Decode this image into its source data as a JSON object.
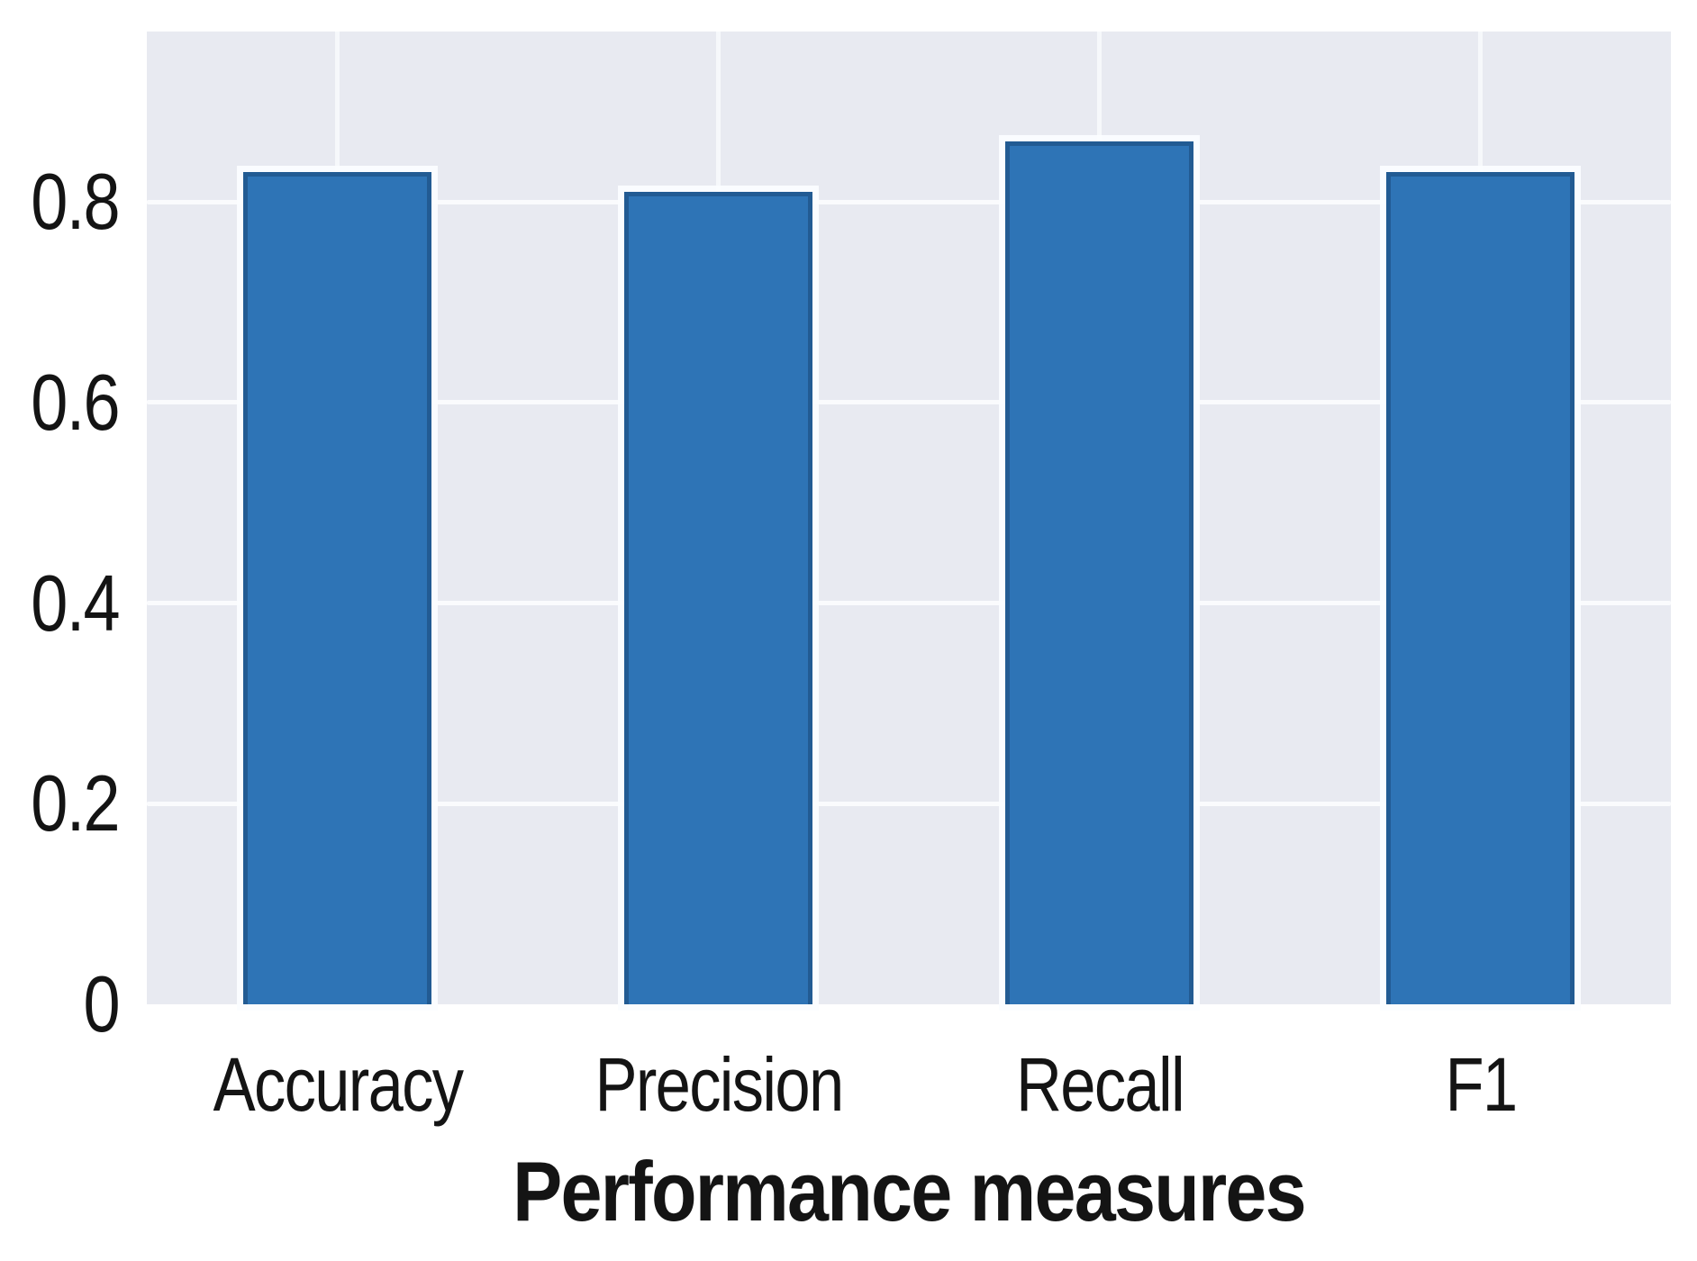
{
  "chart_data": {
    "type": "bar",
    "title": "",
    "categories": [
      "Accuracy",
      "Precision",
      "Recall",
      "F1"
    ],
    "values": [
      0.83,
      0.81,
      0.86,
      0.83
    ],
    "xlabel": "Performance measures",
    "ylabel": "",
    "yticks": [
      0,
      0.2,
      0.4,
      0.6,
      0.8
    ],
    "ytick_labels": [
      "0",
      "0.2",
      "0.4",
      "0.6",
      "0.8"
    ],
    "ylim": [
      0,
      0.97
    ],
    "grid": "on",
    "gridlines": "white horizontal lines at y ticks and vertical lines at category centers",
    "legend": "none",
    "bar_width_fraction": 0.124,
    "colors": {
      "bar_fill": "#2e74b6",
      "bar_edge": "#143e68",
      "bar_halo": "#fbfdff",
      "plot_background": "#e8eaf1",
      "gridline": "#fafbfd",
      "text": "#141414",
      "page_background": "#ffffff"
    }
  }
}
